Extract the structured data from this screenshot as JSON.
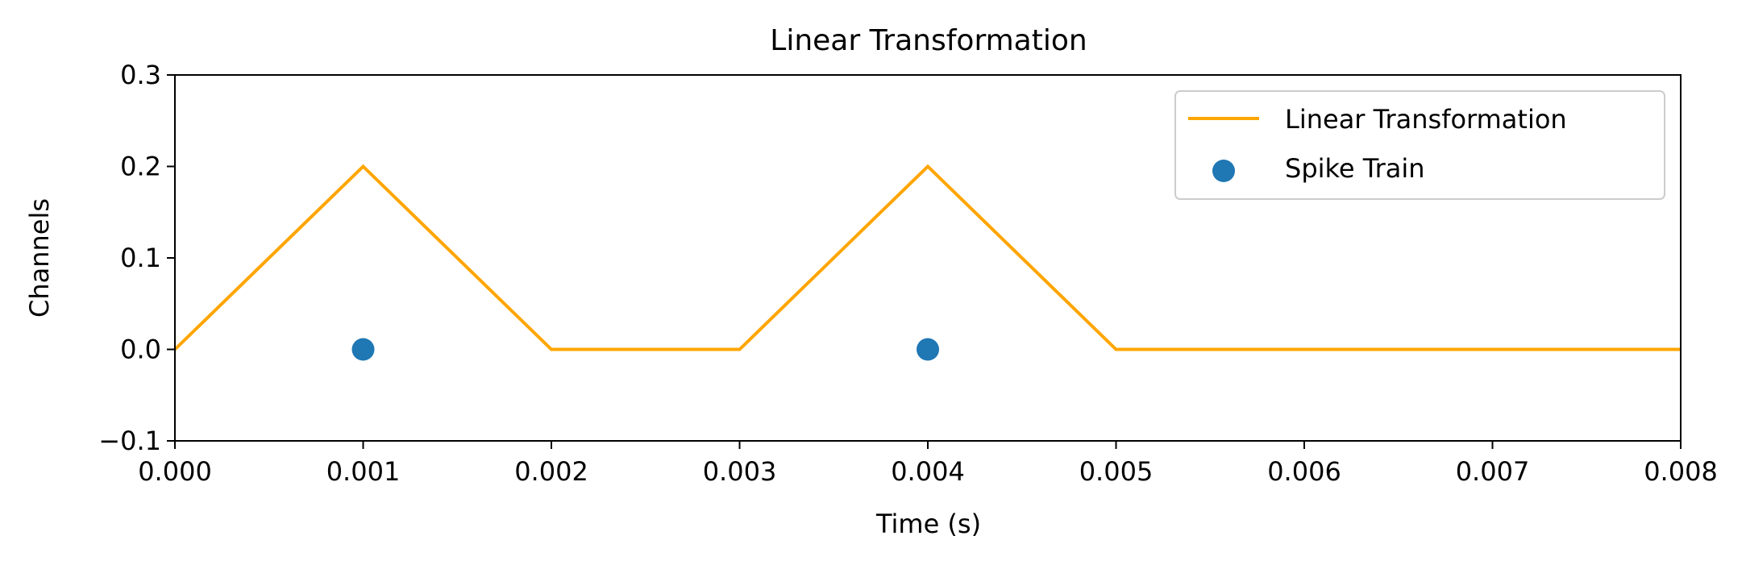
{
  "chart_data": {
    "type": "line",
    "title": "Linear Transformation",
    "xlabel": "Time (s)",
    "ylabel": "Channels",
    "xlim": [
      0.0,
      0.008
    ],
    "ylim": [
      -0.1,
      0.3
    ],
    "xticks": [
      0.0,
      0.001,
      0.002,
      0.003,
      0.004,
      0.005,
      0.006,
      0.007,
      0.008
    ],
    "xtick_labels": [
      "0.000",
      "0.001",
      "0.002",
      "0.003",
      "0.004",
      "0.005",
      "0.006",
      "0.007",
      "0.008"
    ],
    "yticks": [
      -0.1,
      0.0,
      0.1,
      0.2,
      0.3
    ],
    "ytick_labels": [
      "−0.1",
      "0.0",
      "0.1",
      "0.2",
      "0.3"
    ],
    "grid": false,
    "legend_position": "top-right",
    "series": [
      {
        "name": "Linear Transformation",
        "kind": "line",
        "color": "#ffa500",
        "x": [
          0.0,
          0.001,
          0.002,
          0.003,
          0.004,
          0.005,
          0.006,
          0.007,
          0.008
        ],
        "y": [
          0.0,
          0.2,
          0.0,
          0.0,
          0.2,
          0.0,
          0.0,
          0.0,
          0.0
        ]
      },
      {
        "name": "Spike Train",
        "kind": "scatter",
        "color": "#1f77b4",
        "x": [
          0.001,
          0.004
        ],
        "y": [
          0.0,
          0.0
        ]
      }
    ]
  }
}
